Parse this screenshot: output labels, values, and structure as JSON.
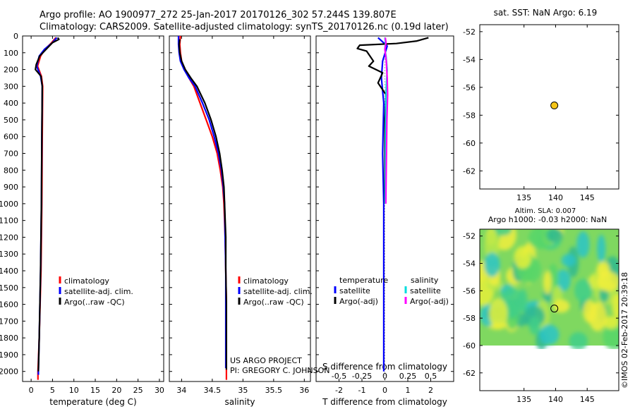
{
  "title_line1": "Argo profile: AO 1900977_272 25-Jan-2017 20170126_302 57.244S 139.807E",
  "title_line2": "Climatology: CARS2009. Satellite-adjusted climatology: synTS_20170126.nc (0.19d later)",
  "project_line1": "US ARGO PROJECT",
  "project_line2": "PI: GREGORY C. JOHNSON",
  "timestamp": "©IMOS 02-Feb-2017 20:39:18",
  "sst_title": "sat. SST: NaN Argo: 6.19",
  "sla_title1": "Altim. SLA: 0.007",
  "sla_title2": "Argo h1000: -0.03 h2000: NaN",
  "colors": {
    "climatology": "#ff0000",
    "satellite": "#0000ff",
    "argo": "#000000",
    "sal_satellite": "#00dddd",
    "sal_argo": "#ff00ff",
    "marker": "#f5c518"
  },
  "chart_data": [
    {
      "type": "line",
      "id": "temperature",
      "xlabel": "temperature (deg C)",
      "ylabel": "",
      "xlim": [
        -2,
        31
      ],
      "ylim": [
        2060,
        0
      ],
      "xticks": [
        0,
        5,
        10,
        15,
        20,
        25,
        30
      ],
      "yticks": [
        0,
        100,
        200,
        300,
        400,
        500,
        600,
        700,
        800,
        900,
        1000,
        1100,
        1200,
        1300,
        1400,
        1500,
        1600,
        1700,
        1800,
        1900,
        2000
      ],
      "legend": [
        "climatology",
        "satellite-adj. clim.",
        "Argo(..raw -QC)"
      ],
      "series": [
        {
          "name": "climatology",
          "color": "climatology",
          "points": [
            [
              5.8,
              10
            ],
            [
              4.8,
              40
            ],
            [
              3.2,
              80
            ],
            [
              2.2,
              120
            ],
            [
              1.5,
              180
            ],
            [
              2.4,
              240
            ],
            [
              2.7,
              300
            ],
            [
              2.6,
              600
            ],
            [
              2.5,
              1000
            ],
            [
              2.3,
              1400
            ],
            [
              1.9,
              1800
            ],
            [
              1.6,
              2000
            ],
            [
              1.6,
              2050
            ]
          ]
        },
        {
          "name": "satellite-adj. clim.",
          "color": "satellite",
          "points": [
            [
              6.0,
              10
            ],
            [
              5.0,
              40
            ],
            [
              3.1,
              80
            ],
            [
              1.9,
              120
            ],
            [
              1.3,
              180
            ],
            [
              2.2,
              240
            ],
            [
              2.6,
              300
            ],
            [
              2.5,
              600
            ],
            [
              2.4,
              1000
            ],
            [
              2.2,
              1400
            ],
            [
              1.9,
              1800
            ],
            [
              1.7,
              2000
            ],
            [
              1.7,
              2020
            ]
          ]
        },
        {
          "name": "Argo(..raw -QC)",
          "color": "argo",
          "points": [
            [
              6.2,
              10
            ],
            [
              6.5,
              20
            ],
            [
              5.0,
              40
            ],
            [
              3.5,
              80
            ],
            [
              2.0,
              120
            ],
            [
              1.2,
              170
            ],
            [
              1.0,
              200
            ],
            [
              2.3,
              240
            ],
            [
              2.6,
              300
            ],
            [
              2.5,
              600
            ],
            [
              2.4,
              1000
            ],
            [
              2.2,
              1400
            ],
            [
              1.9,
              1800
            ],
            [
              1.7,
              2000
            ]
          ]
        }
      ]
    },
    {
      "type": "line",
      "id": "salinity",
      "xlabel": "salinity",
      "ylabel": "",
      "xlim": [
        33.8,
        36.1
      ],
      "ylim": [
        2060,
        0
      ],
      "xticks": [
        34,
        34.5,
        35,
        35.5,
        36
      ],
      "yticks": [
        0,
        100,
        200,
        300,
        400,
        500,
        600,
        700,
        800,
        900,
        1000,
        1100,
        1200,
        1300,
        1400,
        1500,
        1600,
        1700,
        1800,
        1900,
        2000
      ],
      "legend": [
        "climatology",
        "satellite-adj. clim.",
        "Argo(..raw -QC)"
      ],
      "series": [
        {
          "name": "climatology",
          "color": "climatology",
          "points": [
            [
              33.98,
              0
            ],
            [
              33.97,
              50
            ],
            [
              33.98,
              100
            ],
            [
              34.0,
              150
            ],
            [
              34.05,
              200
            ],
            [
              34.12,
              250
            ],
            [
              34.2,
              300
            ],
            [
              34.3,
              400
            ],
            [
              34.4,
              500
            ],
            [
              34.5,
              600
            ],
            [
              34.58,
              700
            ],
            [
              34.63,
              800
            ],
            [
              34.67,
              900
            ],
            [
              34.69,
              1000
            ],
            [
              34.71,
              1200
            ],
            [
              34.72,
              1400
            ],
            [
              34.73,
              1600
            ],
            [
              34.73,
              1800
            ],
            [
              34.73,
              2050
            ]
          ]
        },
        {
          "name": "satellite-adj. clim.",
          "color": "satellite",
          "points": [
            [
              33.95,
              0
            ],
            [
              33.95,
              50
            ],
            [
              33.96,
              100
            ],
            [
              33.98,
              150
            ],
            [
              34.04,
              200
            ],
            [
              34.12,
              250
            ],
            [
              34.22,
              300
            ],
            [
              34.34,
              400
            ],
            [
              34.45,
              500
            ],
            [
              34.53,
              600
            ],
            [
              34.6,
              700
            ],
            [
              34.65,
              800
            ],
            [
              34.68,
              900
            ],
            [
              34.7,
              1000
            ],
            [
              34.71,
              1200
            ],
            [
              34.72,
              1400
            ],
            [
              34.72,
              1600
            ],
            [
              34.72,
              1800
            ],
            [
              34.72,
              1980
            ]
          ]
        },
        {
          "name": "Argo(..raw -QC)",
          "color": "argo",
          "points": [
            [
              33.97,
              20
            ],
            [
              33.96,
              50
            ],
            [
              33.97,
              100
            ],
            [
              34.0,
              150
            ],
            [
              34.06,
              200
            ],
            [
              34.15,
              250
            ],
            [
              34.25,
              300
            ],
            [
              34.38,
              400
            ],
            [
              34.48,
              500
            ],
            [
              34.56,
              600
            ],
            [
              34.62,
              700
            ],
            [
              34.66,
              800
            ],
            [
              34.69,
              900
            ],
            [
              34.7,
              1000
            ],
            [
              34.72,
              1200
            ],
            [
              34.72,
              1400
            ],
            [
              34.73,
              1600
            ],
            [
              34.73,
              1800
            ],
            [
              34.73,
              1990
            ]
          ]
        }
      ]
    },
    {
      "type": "line",
      "id": "difference",
      "xlabel": "T difference from climatology",
      "xlabel_top": "S difference from climatology",
      "xlim": [
        -3,
        3
      ],
      "ylim": [
        2060,
        0
      ],
      "xticks": [
        -2,
        -1,
        0,
        1,
        2
      ],
      "xticks_s": [
        -0.5,
        -0.25,
        0,
        0.25,
        0.5
      ],
      "yticks": [
        0,
        100,
        200,
        300,
        400,
        500,
        600,
        700,
        800,
        900,
        1000,
        1100,
        1200,
        1300,
        1400,
        1500,
        1600,
        1700,
        1800,
        1900,
        2000
      ],
      "legend_t": {
        "title": "temperature",
        "items": [
          "satellite",
          "Argo(-adj)"
        ]
      },
      "legend_s": {
        "title": "salinity",
        "items": [
          "satellite",
          "Argo(-adj)"
        ]
      },
      "series": [
        {
          "name": "temperature satellite",
          "color": "satellite",
          "points": [
            [
              -0.3,
              10
            ],
            [
              0.1,
              60
            ],
            [
              -0.1,
              150
            ],
            [
              -0.15,
              250
            ],
            [
              -0.05,
              400
            ],
            [
              -0.1,
              700
            ],
            [
              -0.05,
              1000
            ],
            [
              -0.05,
              1500
            ],
            [
              -0.05,
              2000
            ]
          ]
        },
        {
          "name": "temperature Argo(-adj)",
          "color": "argo",
          "points": [
            [
              1.9,
              10
            ],
            [
              1.4,
              30
            ],
            [
              0.5,
              45
            ],
            [
              -1.1,
              55
            ],
            [
              -1.2,
              75
            ],
            [
              -0.8,
              90
            ],
            [
              -0.5,
              150
            ],
            [
              -0.7,
              180
            ],
            [
              -0.1,
              220
            ],
            [
              -0.3,
              280
            ],
            [
              0.05,
              350
            ],
            [
              0.0,
              500
            ],
            [
              0.0,
              800
            ],
            [
              0.0,
              1000
            ]
          ]
        },
        {
          "name": "salinity satellite",
          "color": "sal_satellite",
          "points": [
            [
              0.0,
              10
            ],
            [
              0.03,
              40
            ],
            [
              0.0,
              80
            ],
            [
              0.05,
              120
            ],
            [
              0.1,
              200
            ],
            [
              0.06,
              300
            ],
            [
              0.04,
              400
            ],
            [
              0.03,
              600
            ],
            [
              0.02,
              900
            ],
            [
              0.01,
              1000
            ]
          ]
        },
        {
          "name": "salinity Argo(-adj)",
          "color": "sal_argo",
          "points": [
            [
              0.02,
              10
            ],
            [
              0.05,
              40
            ],
            [
              0.0,
              80
            ],
            [
              0.06,
              150
            ],
            [
              0.1,
              250
            ],
            [
              0.12,
              350
            ],
            [
              0.09,
              500
            ],
            [
              0.07,
              700
            ],
            [
              0.05,
              900
            ],
            [
              0.04,
              1000
            ]
          ]
        }
      ]
    },
    {
      "type": "scatter",
      "id": "sst_map",
      "xlim": [
        128,
        150
      ],
      "ylim": [
        -63.3,
        -51.5
      ],
      "xticks": [
        135,
        140,
        145
      ],
      "yticks": [
        -52,
        -54,
        -56,
        -58,
        -60,
        -62
      ],
      "points": [
        {
          "x": 139.8,
          "y": -57.3
        }
      ]
    },
    {
      "type": "heatmap",
      "id": "sla_map",
      "xlim": [
        128,
        150
      ],
      "ylim": [
        -63.3,
        -51.5
      ],
      "xticks": [
        135,
        140,
        145
      ],
      "yticks": [
        -52,
        -54,
        -56,
        -58,
        -60,
        -62
      ],
      "data_extent_lat": [
        -60,
        -51.5
      ],
      "points": [
        {
          "x": 139.8,
          "y": -57.3
        }
      ]
    }
  ]
}
